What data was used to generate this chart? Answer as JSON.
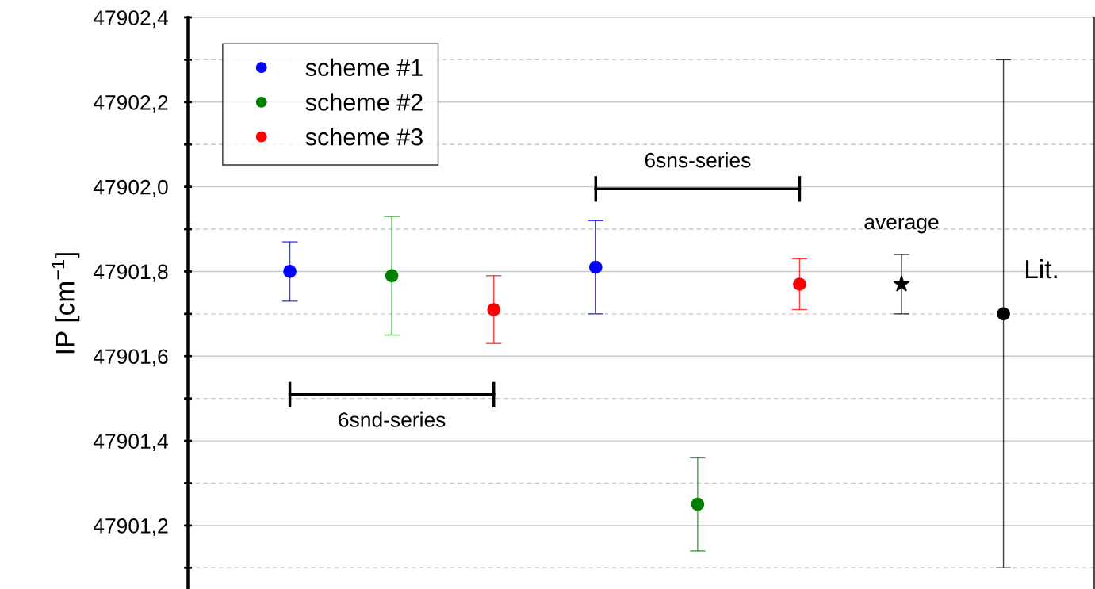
{
  "chart_data": {
    "type": "scatter",
    "ylabel": "IP [cm$^{−1}$]",
    "categories": [
      null,
      null,
      null,
      null,
      null,
      null,
      null,
      null
    ],
    "series": [
      {
        "name": "scheme #1",
        "color": "#0000ff",
        "values": [
          47901.8,
          null,
          null,
          47901.81,
          null,
          null,
          null,
          null
        ],
        "errors": [
          0.07,
          null,
          null,
          0.11,
          null,
          null,
          null,
          null
        ]
      },
      {
        "name": "scheme #2",
        "color": "#008000",
        "values": [
          null,
          47901.79,
          null,
          null,
          47901.25,
          null,
          null,
          null
        ],
        "errors": [
          null,
          0.14,
          null,
          null,
          0.11,
          null,
          null,
          null
        ]
      },
      {
        "name": "scheme #3",
        "color": "#ff0000",
        "values": [
          null,
          null,
          47901.71,
          null,
          null,
          47901.77,
          null,
          null
        ],
        "errors": [
          null,
          null,
          0.08,
          null,
          null,
          0.06,
          null,
          null
        ]
      },
      {
        "name": "average",
        "color": "#000000",
        "marker": "star",
        "values": [
          null,
          null,
          null,
          null,
          null,
          null,
          47901.77,
          null
        ],
        "errors": [
          null,
          null,
          null,
          null,
          null,
          null,
          0.07,
          null
        ]
      },
      {
        "name": "Lit.",
        "color": "#000000",
        "values": [
          null,
          null,
          null,
          null,
          null,
          null,
          null,
          47901.7
        ],
        "errors": [
          null,
          null,
          null,
          null,
          null,
          null,
          null,
          0.6
        ]
      }
    ],
    "annotations": [
      "6snd-series",
      "6sns-series"
    ],
    "marker": "circle",
    "ylim": [
      47901.05,
      47902.4
    ],
    "yticks": [
      {
        "value": 47901.1,
        "label": null
      },
      {
        "value": 47901.2,
        "label": "47901,2"
      },
      {
        "value": 47901.3,
        "label": null
      },
      {
        "value": 47901.4,
        "label": "47901,4"
      },
      {
        "value": 47901.5,
        "label": null
      },
      {
        "value": 47901.6,
        "label": "47901,6"
      },
      {
        "value": 47901.7,
        "label": null
      },
      {
        "value": 47901.8,
        "label": "47901,8"
      },
      {
        "value": 47901.9,
        "label": null
      },
      {
        "value": 47902.0,
        "label": "47902,0"
      },
      {
        "value": 47902.1,
        "label": null
      },
      {
        "value": 47902.2,
        "label": "47902,2"
      },
      {
        "value": 47902.3,
        "label": null
      },
      {
        "value": 47902.4,
        "label": "47902,4"
      }
    ],
    "tick_labels": "y",
    "grid": "y",
    "legend": "top left"
  }
}
